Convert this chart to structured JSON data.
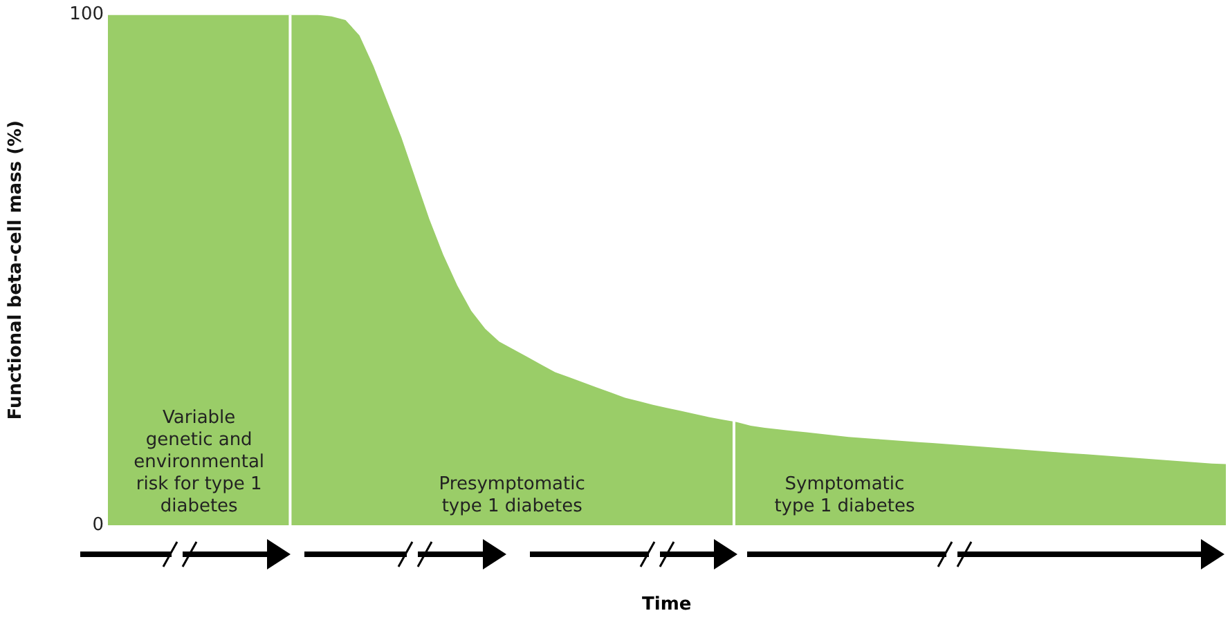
{
  "chart_data": {
    "type": "area",
    "ylabel": "Functional beta-cell mass (%)",
    "xlabel": "Time",
    "categories": [
      null,
      null,
      null,
      null,
      null,
      null,
      null,
      null,
      null,
      null,
      null,
      null,
      null,
      null,
      null,
      null,
      null,
      null,
      null,
      null,
      null,
      null,
      null,
      null,
      null,
      null,
      null,
      null,
      null,
      null,
      null,
      null,
      null,
      null,
      null,
      null,
      null,
      null,
      null,
      null,
      null,
      null,
      null,
      null,
      null,
      null,
      null,
      null,
      null,
      null,
      null,
      null,
      null,
      null,
      null,
      null,
      null,
      null,
      null,
      null,
      null,
      null,
      null,
      null,
      null,
      null,
      null,
      null,
      null,
      null,
      null,
      null,
      null,
      null,
      null,
      null,
      null,
      null,
      null,
      null,
      null
    ],
    "series": [
      {
        "color": "#9acd68",
        "values": [
          100,
          100,
          100,
          100,
          100,
          100,
          100,
          100,
          100,
          100,
          100,
          100,
          100,
          100,
          100,
          100,
          99.7,
          99,
          96,
          90,
          83,
          76,
          68,
          60,
          53,
          47,
          42,
          38.5,
          36,
          34.5,
          33,
          31.5,
          30,
          29,
          28,
          27,
          26,
          25,
          24.3,
          23.6,
          23,
          22.4,
          21.8,
          21.2,
          20.7,
          20.2,
          19.5,
          19.1,
          18.8,
          18.5,
          18.2,
          17.9,
          17.6,
          17.3,
          17.1,
          16.9,
          16.7,
          16.5,
          16.3,
          16.1,
          15.9,
          15.7,
          15.5,
          15.3,
          15.1,
          14.9,
          14.7,
          14.5,
          14.3,
          14.1,
          13.9,
          13.7,
          13.5,
          13.3,
          13.1,
          12.9,
          12.7,
          12.5,
          12.3,
          12.1,
          12
        ]
      }
    ],
    "ylim": [
      0,
      100
    ],
    "yticks": [
      0,
      100
    ],
    "tick_labels": "y",
    "grid": false,
    "legend": false,
    "annotations": [
      "Variable genetic and environmental risk for type 1 diabetes",
      "Presymptomatic type 1 diabetes",
      "Symptomatic type 1 diabetes"
    ]
  }
}
